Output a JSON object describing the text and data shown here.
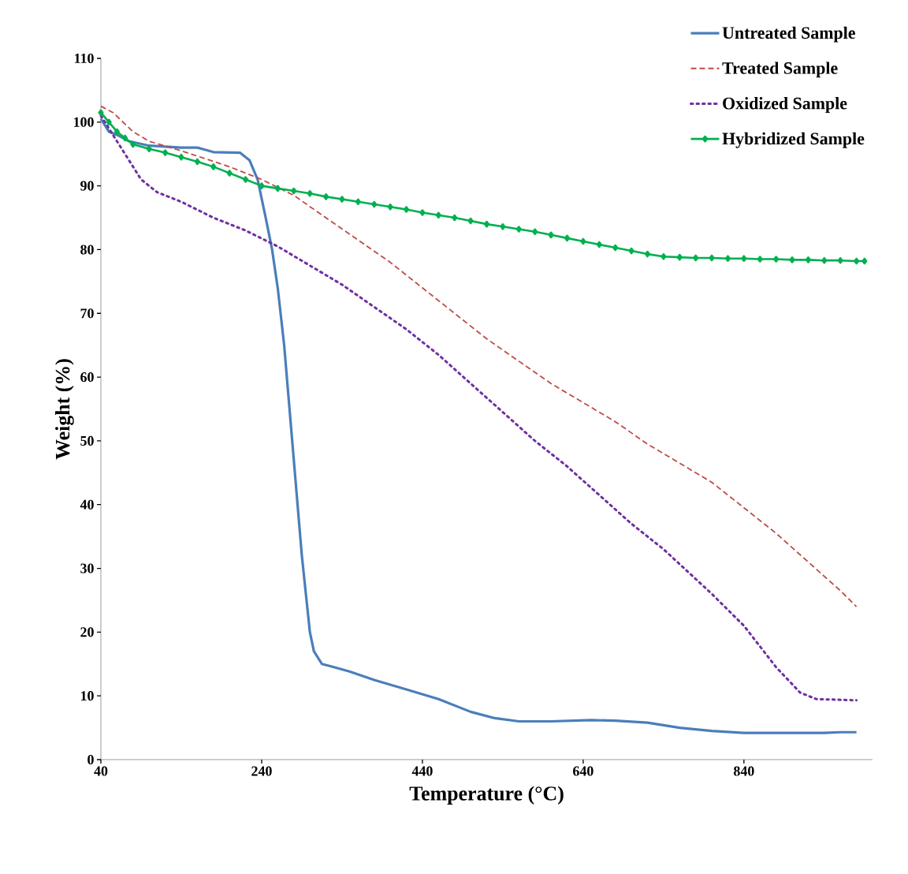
{
  "chart_data": {
    "type": "line",
    "xlabel": "Temperature (°C)",
    "ylabel": "Weight (%)",
    "xlim": [
      40,
      1000
    ],
    "ylim": [
      0,
      110
    ],
    "xticks": [
      40,
      240,
      440,
      640,
      840
    ],
    "yticks": [
      0,
      10,
      20,
      30,
      40,
      50,
      60,
      70,
      80,
      90,
      100,
      110
    ],
    "grid": false,
    "legend": "top right",
    "series": [
      {
        "name": "Untreated Sample",
        "color": "#4a7ebb",
        "line_style": "solid",
        "marker": "none",
        "x": [
          40,
          50,
          60,
          75,
          100,
          140,
          160,
          180,
          213,
          225,
          235,
          240,
          245,
          253,
          260,
          268,
          278,
          290,
          300,
          305,
          315,
          330,
          350,
          380,
          420,
          460,
          500,
          530,
          560,
          600,
          650,
          680,
          720,
          760,
          800,
          840,
          900,
          940,
          960,
          980
        ],
        "values": [
          100.5,
          98.5,
          98,
          97,
          96.3,
          96,
          96,
          95.3,
          95.2,
          94,
          91,
          88,
          85,
          80,
          74,
          65,
          50,
          32,
          20,
          17,
          15,
          14.5,
          13.8,
          12.5,
          11,
          9.5,
          7.5,
          6.5,
          6,
          6,
          6.2,
          6.1,
          5.8,
          5,
          4.5,
          4.2,
          4.2,
          4.2,
          4.3,
          4.3
        ]
      },
      {
        "name": "Treated Sample",
        "color": "#be4b48",
        "line_style": "dashed",
        "marker": "none",
        "x": [
          40,
          55,
          80,
          100,
          140,
          200,
          240,
          280,
          320,
          360,
          400,
          440,
          480,
          520,
          560,
          600,
          640,
          680,
          720,
          760,
          800,
          840,
          880,
          920,
          960,
          980
        ],
        "values": [
          102.5,
          101.5,
          98.5,
          97,
          95.5,
          93,
          91,
          88.5,
          85,
          81.5,
          78,
          74,
          70,
          66,
          62.5,
          59,
          56,
          53,
          49.5,
          46.5,
          43.5,
          39.5,
          35.5,
          31,
          26.5,
          24
        ]
      },
      {
        "name": "Oxidized Sample",
        "color": "#7030a0",
        "line_style": "dotted",
        "marker": "none",
        "x": [
          40,
          50,
          70,
          90,
          110,
          140,
          180,
          220,
          260,
          300,
          340,
          380,
          420,
          460,
          500,
          540,
          580,
          620,
          660,
          700,
          740,
          770,
          800,
          840,
          880,
          910,
          930,
          980
        ],
        "values": [
          101,
          99,
          95,
          91,
          89,
          87.5,
          85,
          83,
          80.5,
          77.5,
          74.5,
          71,
          67.5,
          63.5,
          59,
          54.5,
          50,
          46,
          41.5,
          37,
          33,
          29.5,
          26,
          21,
          14.5,
          10.5,
          9.5,
          9.3
        ]
      },
      {
        "name": "Hybridized Sample",
        "color": "#00b050",
        "line_style": "solid",
        "marker": "diamond",
        "x": [
          40,
          50,
          60,
          70,
          80,
          100,
          120,
          140,
          160,
          180,
          200,
          220,
          240,
          260,
          280,
          300,
          320,
          340,
          360,
          380,
          400,
          420,
          440,
          460,
          480,
          500,
          520,
          540,
          560,
          580,
          600,
          620,
          640,
          660,
          680,
          700,
          720,
          740,
          760,
          780,
          800,
          820,
          840,
          860,
          880,
          900,
          920,
          940,
          960,
          980,
          990
        ],
        "values": [
          101.5,
          100,
          98.5,
          97.5,
          96.5,
          95.8,
          95.2,
          94.5,
          93.8,
          93,
          92,
          91,
          90,
          89.6,
          89.2,
          88.8,
          88.3,
          87.9,
          87.5,
          87.1,
          86.7,
          86.3,
          85.8,
          85.4,
          85,
          84.5,
          84,
          83.6,
          83.2,
          82.8,
          82.3,
          81.8,
          81.3,
          80.8,
          80.3,
          79.8,
          79.3,
          78.9,
          78.8,
          78.7,
          78.7,
          78.6,
          78.6,
          78.5,
          78.5,
          78.4,
          78.4,
          78.3,
          78.3,
          78.2,
          78.2
        ]
      }
    ]
  }
}
